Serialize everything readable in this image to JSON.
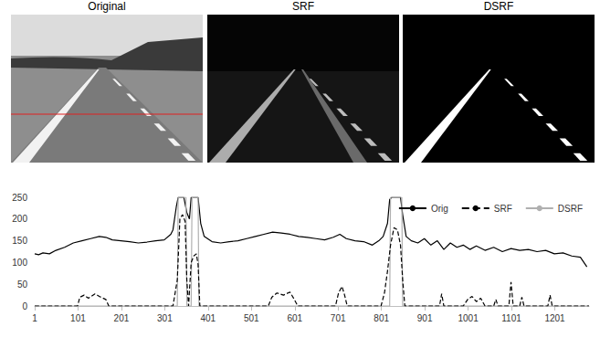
{
  "panels": [
    {
      "title": "Original"
    },
    {
      "title": "SRF"
    },
    {
      "title": "DSRF"
    }
  ],
  "chart_data": {
    "type": "line",
    "xlim": [
      1,
      1280
    ],
    "xticks": [
      1,
      101,
      201,
      301,
      401,
      501,
      601,
      701,
      801,
      901,
      1001,
      1101,
      1201
    ],
    "ylim": [
      0,
      250
    ],
    "yticks": [
      0,
      50,
      100,
      150,
      200,
      250
    ],
    "grid": false,
    "legend": "upper right",
    "series": [
      {
        "name": "Orig",
        "color": "#000000",
        "line_style": "solid",
        "x": [
          1,
          10,
          20,
          35,
          50,
          70,
          90,
          110,
          130,
          150,
          165,
          180,
          200,
          220,
          240,
          260,
          280,
          300,
          315,
          320,
          328,
          332,
          345,
          352,
          358,
          362,
          378,
          384,
          392,
          410,
          430,
          450,
          470,
          490,
          510,
          530,
          550,
          570,
          590,
          610,
          630,
          650,
          670,
          690,
          705,
          720,
          740,
          760,
          780,
          795,
          805,
          815,
          820,
          825,
          845,
          850,
          858,
          870,
          885,
          900,
          915,
          930,
          945,
          960,
          975,
          990,
          1005,
          1020,
          1040,
          1060,
          1080,
          1100,
          1120,
          1140,
          1160,
          1180,
          1200,
          1220,
          1240,
          1260,
          1275
        ],
        "values": [
          120,
          118,
          122,
          120,
          128,
          135,
          145,
          150,
          155,
          160,
          158,
          152,
          150,
          148,
          145,
          147,
          150,
          152,
          165,
          175,
          230,
          250,
          250,
          215,
          200,
          250,
          250,
          190,
          160,
          148,
          145,
          148,
          150,
          155,
          160,
          165,
          170,
          168,
          165,
          160,
          158,
          155,
          152,
          158,
          165,
          155,
          150,
          148,
          140,
          150,
          160,
          190,
          245,
          250,
          250,
          210,
          160,
          150,
          145,
          155,
          140,
          150,
          130,
          145,
          135,
          140,
          130,
          138,
          128,
          135,
          125,
          132,
          128,
          130,
          125,
          128,
          120,
          122,
          115,
          112,
          90
        ]
      },
      {
        "name": "SRF",
        "color": "#000000",
        "line_style": "dashed",
        "x": [
          1,
          100,
          105,
          115,
          125,
          140,
          150,
          165,
          172,
          320,
          330,
          336,
          342,
          348,
          352,
          356,
          362,
          368,
          374,
          378,
          382,
          540,
          548,
          560,
          575,
          590,
          600,
          608,
          695,
          702,
          710,
          716,
          722,
          800,
          808,
          815,
          822,
          830,
          838,
          845,
          850,
          855,
          935,
          940,
          945,
          990,
          1000,
          1010,
          1020,
          1030,
          1040,
          1060,
          1065,
          1070,
          1095,
          1100,
          1105,
          1120,
          1125,
          1130,
          1185,
          1190,
          1195,
          1280
        ],
        "values": [
          0,
          0,
          20,
          25,
          18,
          28,
          22,
          15,
          0,
          0,
          60,
          200,
          210,
          195,
          60,
          0,
          100,
          115,
          120,
          95,
          0,
          0,
          20,
          30,
          25,
          32,
          15,
          0,
          0,
          30,
          45,
          25,
          0,
          0,
          30,
          80,
          140,
          180,
          175,
          140,
          60,
          0,
          0,
          28,
          0,
          0,
          15,
          22,
          10,
          18,
          0,
          0,
          15,
          0,
          0,
          55,
          0,
          0,
          20,
          0,
          0,
          25,
          0,
          0
        ]
      },
      {
        "name": "DSRF",
        "color": "#b0b0b0",
        "line_style": "solid",
        "x": [
          1,
          330,
          332,
          350,
          352,
          362,
          364,
          378,
          380,
          820,
          822,
          848,
          850,
          1280
        ],
        "values": [
          0,
          0,
          250,
          250,
          0,
          0,
          250,
          250,
          0,
          0,
          250,
          250,
          0,
          0
        ]
      }
    ]
  }
}
